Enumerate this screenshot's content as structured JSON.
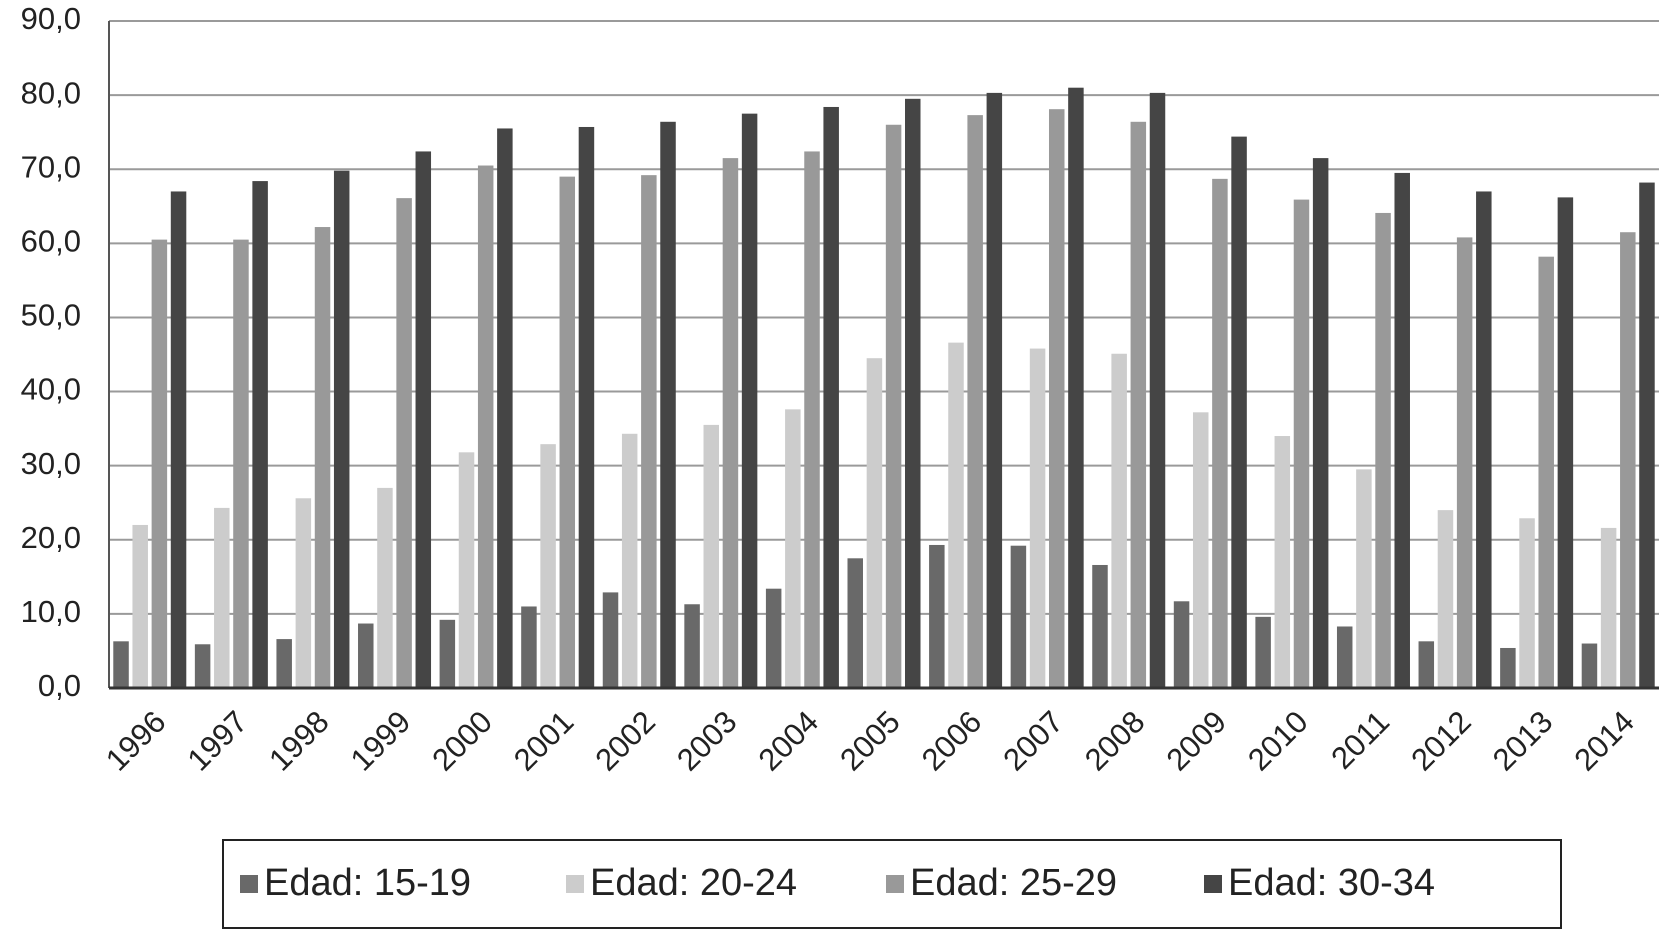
{
  "chart_data": {
    "type": "bar",
    "categories": [
      "1996",
      "1997",
      "1998",
      "1999",
      "2000",
      "2001",
      "2002",
      "2003",
      "2004",
      "2005",
      "2006",
      "2007",
      "2008",
      "2009",
      "2010",
      "2011",
      "2012",
      "2013",
      "2014"
    ],
    "series": [
      {
        "name": "Edad: 15-19",
        "color": "#696969",
        "values": [
          6.3,
          5.9,
          6.6,
          8.7,
          9.2,
          11.0,
          12.9,
          11.3,
          13.4,
          17.5,
          19.3,
          19.2,
          16.6,
          11.7,
          9.6,
          8.3,
          6.3,
          5.4,
          6.0
        ]
      },
      {
        "name": "Edad: 20-24",
        "color": "#cccccc",
        "values": [
          22.0,
          24.3,
          25.6,
          27.0,
          31.8,
          32.9,
          34.3,
          35.5,
          37.6,
          44.5,
          46.6,
          45.8,
          45.1,
          37.2,
          34.0,
          29.5,
          24.0,
          22.9,
          21.6
        ]
      },
      {
        "name": "Edad: 25-29",
        "color": "#999999",
        "values": [
          60.5,
          60.5,
          62.2,
          66.1,
          70.5,
          69.0,
          69.2,
          71.5,
          72.4,
          76.0,
          77.3,
          78.1,
          76.4,
          68.7,
          65.9,
          64.1,
          60.8,
          58.2,
          61.5
        ]
      },
      {
        "name": "Edad: 30-34",
        "color": "#454545",
        "values": [
          67.0,
          68.4,
          69.8,
          72.4,
          75.5,
          75.7,
          76.4,
          77.5,
          78.4,
          79.5,
          80.3,
          81.0,
          80.3,
          74.4,
          71.5,
          69.5,
          67.0,
          66.2,
          68.2
        ]
      }
    ],
    "ylim": [
      0,
      90
    ],
    "yticks": [
      {
        "value": 0,
        "label": "0,0"
      },
      {
        "value": 10,
        "label": "10,0"
      },
      {
        "value": 20,
        "label": "20,0"
      },
      {
        "value": 30,
        "label": "30,0"
      },
      {
        "value": 40,
        "label": "40,0"
      },
      {
        "value": 50,
        "label": "50,0"
      },
      {
        "value": 60,
        "label": "60,0"
      },
      {
        "value": 70,
        "label": "70,0"
      },
      {
        "value": 80,
        "label": "80,0"
      },
      {
        "value": 90,
        "label": "90,0"
      }
    ],
    "grid": true
  }
}
